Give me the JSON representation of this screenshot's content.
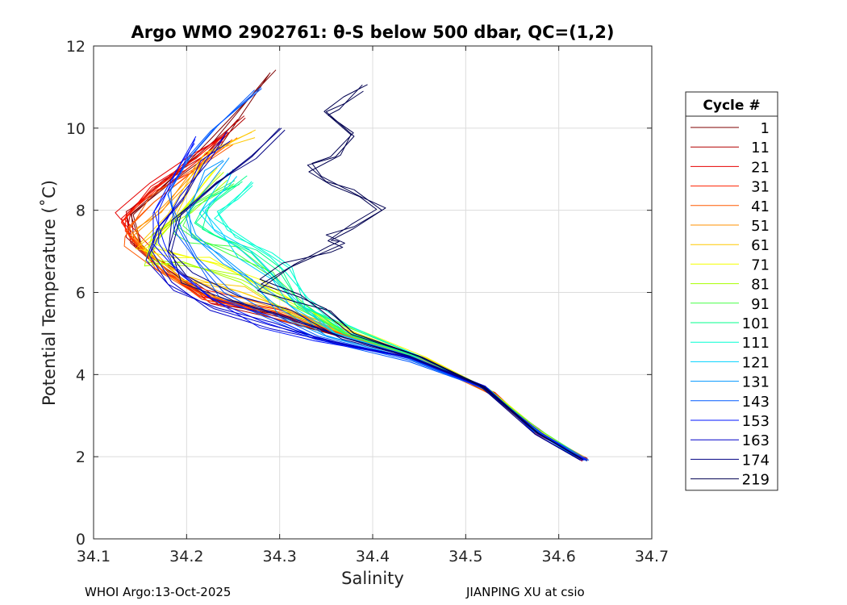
{
  "chart_data": {
    "type": "line",
    "title": "Argo WMO 2902761: θ-S below 500 dbar,  QC=(1,2)",
    "xlabel": "Salinity",
    "ylabel": "Potential Temperature (˚C)",
    "xlim": [
      34.1,
      34.7
    ],
    "ylim": [
      0,
      12
    ],
    "xticks": [
      34.1,
      34.2,
      34.3,
      34.4,
      34.5,
      34.6,
      34.7
    ],
    "xtick_labels": [
      "34.1",
      "34.2",
      "34.3",
      "34.4",
      "34.5",
      "34.6",
      "34.7"
    ],
    "yticks": [
      0,
      2,
      4,
      6,
      8,
      10,
      12
    ],
    "ytick_labels": [
      "0",
      "2",
      "4",
      "6",
      "8",
      "10",
      "12"
    ],
    "grid": true,
    "legend_title": "Cycle #",
    "legend_position": "outside-right",
    "series": [
      {
        "name": "1",
        "color": "#7f0000",
        "points": [
          [
            34.63,
            1.9
          ],
          [
            34.585,
            2.5
          ],
          [
            34.53,
            3.5
          ],
          [
            34.47,
            4.2
          ],
          [
            34.39,
            4.8
          ],
          [
            34.3,
            5.4
          ],
          [
            34.23,
            5.8
          ],
          [
            34.18,
            6.5
          ],
          [
            34.15,
            7.2
          ],
          [
            34.14,
            7.9
          ],
          [
            34.18,
            8.7
          ],
          [
            34.23,
            9.7
          ],
          [
            34.29,
            11.35
          ]
        ]
      },
      {
        "name": "11",
        "color": "#b20000",
        "points": [
          [
            34.63,
            1.92
          ],
          [
            34.585,
            2.5
          ],
          [
            34.53,
            3.52
          ],
          [
            34.47,
            4.22
          ],
          [
            34.39,
            4.82
          ],
          [
            34.3,
            5.4
          ],
          [
            34.225,
            5.85
          ],
          [
            34.175,
            6.5
          ],
          [
            34.14,
            7.2
          ],
          [
            34.135,
            7.9
          ],
          [
            34.17,
            8.6
          ],
          [
            34.215,
            9.4
          ],
          [
            34.262,
            10.3
          ]
        ]
      },
      {
        "name": "21",
        "color": "#e60000",
        "points": [
          [
            34.628,
            1.93
          ],
          [
            34.583,
            2.52
          ],
          [
            34.53,
            3.55
          ],
          [
            34.465,
            4.25
          ],
          [
            34.385,
            4.85
          ],
          [
            34.3,
            5.45
          ],
          [
            34.22,
            5.9
          ],
          [
            34.175,
            6.5
          ],
          [
            34.14,
            7.3
          ],
          [
            34.13,
            7.8
          ],
          [
            34.165,
            8.5
          ],
          [
            34.205,
            9.3
          ],
          [
            34.245,
            9.9
          ]
        ]
      },
      {
        "name": "31",
        "color": "#ff2000",
        "points": [
          [
            34.627,
            1.94
          ],
          [
            34.582,
            2.55
          ],
          [
            34.528,
            3.55
          ],
          [
            34.465,
            4.27
          ],
          [
            34.385,
            4.86
          ],
          [
            34.3,
            5.45
          ],
          [
            34.22,
            5.92
          ],
          [
            34.17,
            6.6
          ],
          [
            34.14,
            7.4
          ],
          [
            34.13,
            7.7
          ],
          [
            34.16,
            8.4
          ],
          [
            34.2,
            9.1
          ],
          [
            34.24,
            9.8
          ]
        ]
      },
      {
        "name": "41",
        "color": "#ff5a00",
        "points": [
          [
            34.626,
            1.95
          ],
          [
            34.58,
            2.56
          ],
          [
            34.528,
            3.57
          ],
          [
            34.46,
            4.3
          ],
          [
            34.38,
            4.88
          ],
          [
            34.3,
            5.48
          ],
          [
            34.215,
            5.95
          ],
          [
            34.17,
            6.6
          ],
          [
            34.14,
            7.3
          ],
          [
            34.135,
            7.5
          ],
          [
            34.165,
            8.2
          ],
          [
            34.21,
            9.0
          ],
          [
            34.25,
            9.6
          ]
        ]
      },
      {
        "name": "51",
        "color": "#ff9100",
        "points": [
          [
            34.625,
            1.97
          ],
          [
            34.58,
            2.58
          ],
          [
            34.527,
            3.58
          ],
          [
            34.46,
            4.32
          ],
          [
            34.38,
            4.9
          ],
          [
            34.305,
            5.5
          ],
          [
            34.23,
            5.9
          ],
          [
            34.18,
            6.4
          ],
          [
            34.15,
            7.1
          ],
          [
            34.14,
            7.4
          ],
          [
            34.175,
            8.1
          ],
          [
            34.22,
            9.2
          ]
        ]
      },
      {
        "name": "61",
        "color": "#ffc800",
        "points": [
          [
            34.624,
            1.98
          ],
          [
            34.579,
            2.6
          ],
          [
            34.526,
            3.6
          ],
          [
            34.46,
            4.35
          ],
          [
            34.39,
            4.95
          ],
          [
            34.32,
            5.5
          ],
          [
            34.26,
            6.0
          ],
          [
            34.2,
            6.4
          ],
          [
            34.16,
            6.9
          ],
          [
            34.15,
            7.2
          ],
          [
            34.18,
            7.9
          ],
          [
            34.22,
            9.4
          ],
          [
            34.27,
            9.9
          ]
        ]
      },
      {
        "name": "71",
        "color": "#f5ff00",
        "points": [
          [
            34.623,
            2.0
          ],
          [
            34.578,
            2.62
          ],
          [
            34.525,
            3.62
          ],
          [
            34.455,
            4.4
          ],
          [
            34.39,
            5.0
          ],
          [
            34.33,
            5.6
          ],
          [
            34.28,
            6.2
          ],
          [
            34.23,
            6.7
          ],
          [
            34.18,
            7.0
          ],
          [
            34.16,
            7.1
          ],
          [
            34.19,
            7.8
          ],
          [
            34.23,
            9.0
          ]
        ]
      },
      {
        "name": "81",
        "color": "#a8ff00",
        "points": [
          [
            34.622,
            2.0
          ],
          [
            34.578,
            2.62
          ],
          [
            34.525,
            3.62
          ],
          [
            34.455,
            4.4
          ],
          [
            34.38,
            4.95
          ],
          [
            34.32,
            5.6
          ],
          [
            34.26,
            6.3
          ],
          [
            34.2,
            6.7
          ],
          [
            34.16,
            6.8
          ],
          [
            34.17,
            7.3
          ],
          [
            34.2,
            8.1
          ],
          [
            34.24,
            8.8
          ]
        ]
      },
      {
        "name": "91",
        "color": "#46ff46",
        "points": [
          [
            34.621,
            2.01
          ],
          [
            34.577,
            2.63
          ],
          [
            34.523,
            3.63
          ],
          [
            34.452,
            4.4
          ],
          [
            34.37,
            5.0
          ],
          [
            34.32,
            5.7
          ],
          [
            34.29,
            6.4
          ],
          [
            34.25,
            7.0
          ],
          [
            34.21,
            7.3
          ],
          [
            34.19,
            7.6
          ],
          [
            34.21,
            8.1
          ],
          [
            34.25,
            8.6
          ]
        ]
      },
      {
        "name": "101",
        "color": "#00ff8c",
        "points": [
          [
            34.62,
            2.02
          ],
          [
            34.576,
            2.64
          ],
          [
            34.523,
            3.64
          ],
          [
            34.45,
            4.42
          ],
          [
            34.37,
            5.05
          ],
          [
            34.32,
            5.8
          ],
          [
            34.3,
            6.5
          ],
          [
            34.27,
            7.0
          ],
          [
            34.23,
            7.4
          ],
          [
            34.21,
            7.7
          ],
          [
            34.23,
            8.2
          ],
          [
            34.26,
            8.7
          ]
        ]
      },
      {
        "name": "111",
        "color": "#00ffd2",
        "points": [
          [
            34.62,
            2.02
          ],
          [
            34.575,
            2.65
          ],
          [
            34.522,
            3.65
          ],
          [
            34.45,
            4.42
          ],
          [
            34.37,
            5.05
          ],
          [
            34.33,
            5.8
          ],
          [
            34.31,
            6.6
          ],
          [
            34.29,
            6.9
          ],
          [
            34.25,
            7.5
          ],
          [
            34.23,
            7.8
          ],
          [
            34.25,
            8.2
          ],
          [
            34.27,
            8.7
          ]
        ]
      },
      {
        "name": "121",
        "color": "#00d2ff",
        "points": [
          [
            34.619,
            2.03
          ],
          [
            34.574,
            2.66
          ],
          [
            34.521,
            3.65
          ],
          [
            34.445,
            4.4
          ],
          [
            34.36,
            5.0
          ],
          [
            34.31,
            5.7
          ],
          [
            34.29,
            6.4
          ],
          [
            34.26,
            7.0
          ],
          [
            34.23,
            7.5
          ],
          [
            34.22,
            8.0
          ],
          [
            34.24,
            8.5
          ],
          [
            34.25,
            9.0
          ]
        ]
      },
      {
        "name": "131",
        "color": "#0096ff",
        "points": [
          [
            34.618,
            2.04
          ],
          [
            34.573,
            2.67
          ],
          [
            34.52,
            3.66
          ],
          [
            34.44,
            4.38
          ],
          [
            34.35,
            4.95
          ],
          [
            34.3,
            5.6
          ],
          [
            34.27,
            6.2
          ],
          [
            34.24,
            6.8
          ],
          [
            34.21,
            7.4
          ],
          [
            34.2,
            8.0
          ],
          [
            34.22,
            8.8
          ],
          [
            34.24,
            9.2
          ]
        ]
      },
      {
        "name": "143",
        "color": "#005aff",
        "points": [
          [
            34.63,
            1.9
          ],
          [
            34.58,
            2.55
          ],
          [
            34.52,
            3.66
          ],
          [
            34.44,
            4.35
          ],
          [
            34.34,
            4.9
          ],
          [
            34.28,
            5.5
          ],
          [
            34.24,
            6.0
          ],
          [
            34.21,
            6.8
          ],
          [
            34.19,
            7.6
          ],
          [
            34.18,
            8.4
          ],
          [
            34.2,
            9.2
          ],
          [
            34.23,
            10.0
          ],
          [
            34.28,
            11.0
          ]
        ]
      },
      {
        "name": "153",
        "color": "#0014ff",
        "points": [
          [
            34.628,
            1.92
          ],
          [
            34.58,
            2.55
          ],
          [
            34.52,
            3.68
          ],
          [
            34.44,
            4.4
          ],
          [
            34.34,
            4.85
          ],
          [
            34.28,
            5.3
          ],
          [
            34.23,
            5.8
          ],
          [
            34.19,
            6.5
          ],
          [
            34.17,
            7.2
          ],
          [
            34.17,
            8.0
          ],
          [
            34.19,
            9.0
          ],
          [
            34.21,
            9.8
          ]
        ]
      },
      {
        "name": "163",
        "color": "#0000c8",
        "points": [
          [
            34.626,
            1.93
          ],
          [
            34.578,
            2.57
          ],
          [
            34.52,
            3.7
          ],
          [
            34.44,
            4.4
          ],
          [
            34.36,
            4.8
          ],
          [
            34.29,
            5.2
          ],
          [
            34.23,
            5.6
          ],
          [
            34.18,
            6.2
          ],
          [
            34.16,
            6.9
          ],
          [
            34.17,
            7.6
          ],
          [
            34.2,
            8.4
          ],
          [
            34.22,
            9.2
          ],
          [
            34.24,
            9.8
          ]
        ]
      },
      {
        "name": "174",
        "color": "#000082",
        "points": [
          [
            34.624,
            1.95
          ],
          [
            34.577,
            2.58
          ],
          [
            34.518,
            3.72
          ],
          [
            34.44,
            4.45
          ],
          [
            34.37,
            4.9
          ],
          [
            34.31,
            5.4
          ],
          [
            34.25,
            5.8
          ],
          [
            34.2,
            6.4
          ],
          [
            34.18,
            7.0
          ],
          [
            34.19,
            7.8
          ],
          [
            34.23,
            8.6
          ],
          [
            34.27,
            9.3
          ],
          [
            34.3,
            10.0
          ]
        ]
      },
      {
        "name": "219",
        "color": "#000050",
        "points": [
          [
            34.624,
            1.95
          ],
          [
            34.578,
            2.58
          ],
          [
            34.52,
            3.7
          ],
          [
            34.45,
            4.45
          ],
          [
            34.38,
            5.0
          ],
          [
            34.35,
            5.6
          ],
          [
            34.32,
            5.9
          ],
          [
            34.28,
            6.2
          ],
          [
            34.31,
            6.6
          ],
          [
            34.35,
            7.0
          ],
          [
            34.37,
            7.2
          ],
          [
            34.35,
            7.4
          ],
          [
            34.38,
            7.6
          ],
          [
            34.41,
            8.0
          ],
          [
            34.38,
            8.5
          ],
          [
            34.35,
            8.7
          ],
          [
            34.33,
            9.1
          ],
          [
            34.36,
            9.3
          ],
          [
            34.38,
            9.8
          ],
          [
            34.35,
            10.4
          ],
          [
            34.37,
            10.6
          ],
          [
            34.39,
            10.9
          ]
        ]
      }
    ]
  },
  "footer": {
    "left": "WHOI Argo:13-Oct-2025",
    "right": "JIANPING XU at csio"
  }
}
